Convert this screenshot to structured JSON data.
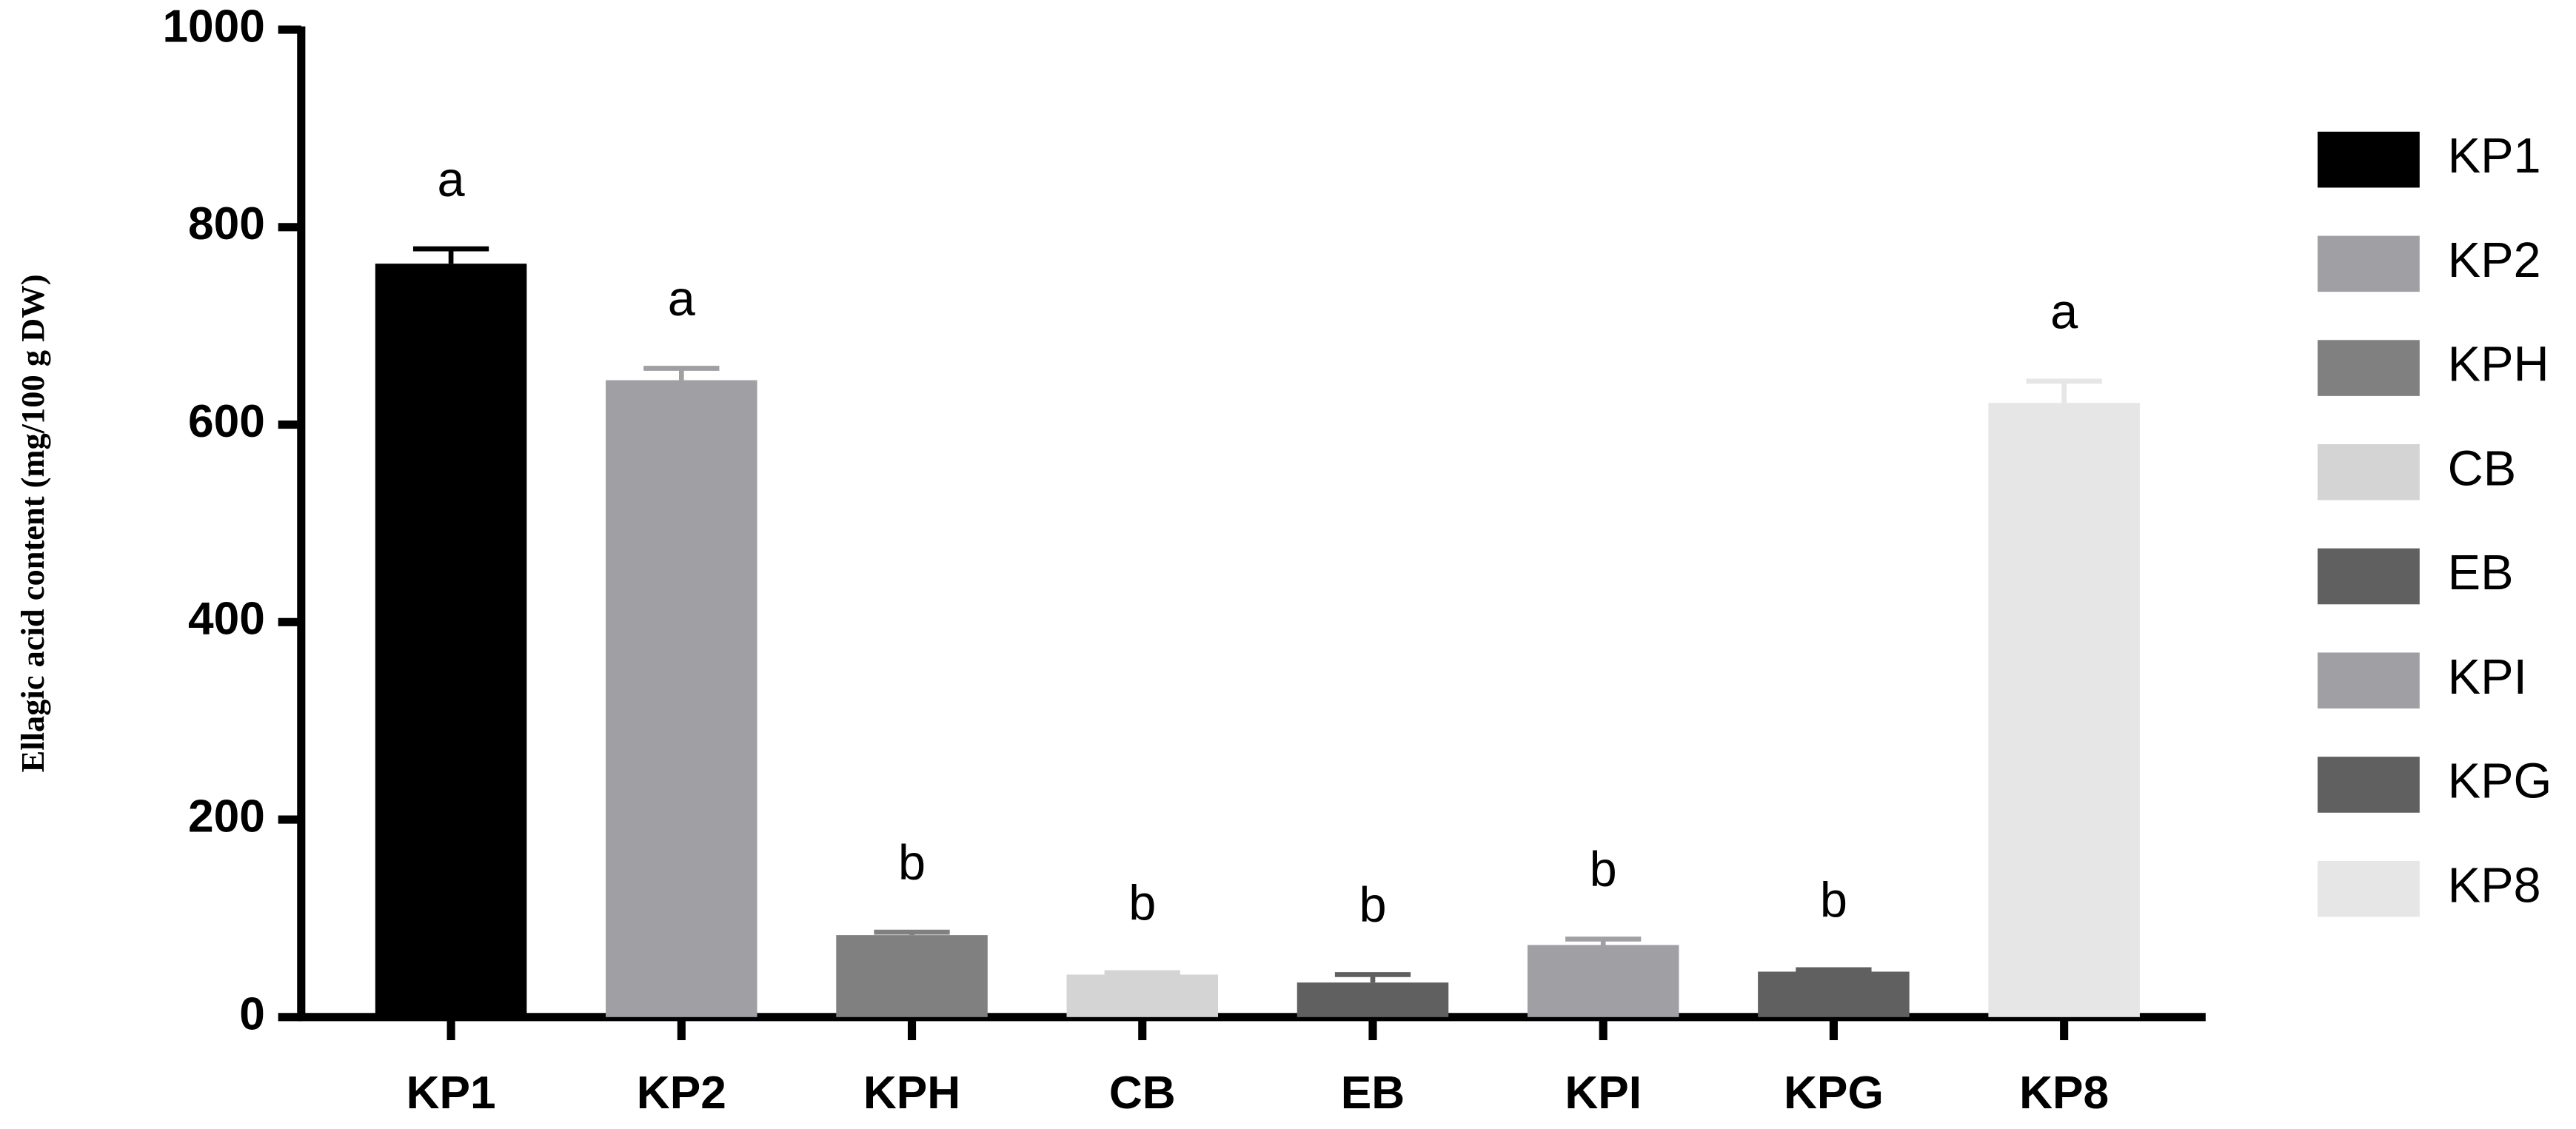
{
  "chart_data": {
    "type": "bar",
    "y_label": "Ellagic acid content (mg/100 g DW)",
    "categories": [
      "KP1",
      "KP2",
      "KPH",
      "CB",
      "EB",
      "KPI",
      "KPG",
      "KP8"
    ],
    "values": [
      763,
      645,
      83,
      43,
      35,
      73,
      46,
      622
    ],
    "errors": [
      15,
      12,
      3,
      2,
      8,
      6,
      2,
      22
    ],
    "annotations": [
      "a",
      "a",
      "b",
      "b",
      "b",
      "b",
      "b",
      "a"
    ],
    "colors": [
      "#000000",
      "#a0a0a4",
      "#808080",
      "#d4d4d4",
      "#606060",
      "#a0a0a4",
      "#606060",
      "#e6e6e6"
    ],
    "ylim": [
      0,
      1000
    ],
    "yticks": [
      0,
      200,
      400,
      600,
      800,
      1000
    ],
    "legend": "right"
  }
}
